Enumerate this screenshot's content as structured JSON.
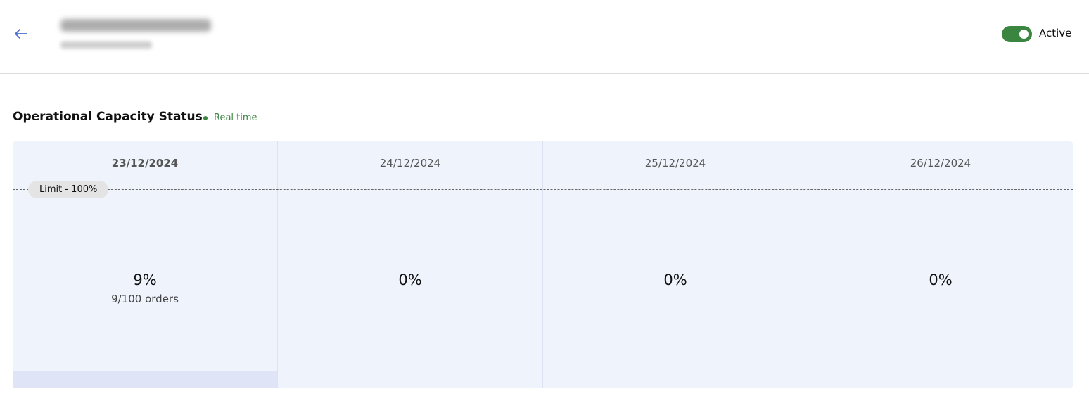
{
  "header": {
    "back_icon": "arrow-left-icon",
    "status_label": "Active",
    "status_on": true,
    "accent": "#3a8540"
  },
  "section": {
    "title": "Operational Capacity Status",
    "realtime_label": "Real time"
  },
  "capacity": {
    "limit_label": "Limit - 100%",
    "days": [
      {
        "date": "23/12/2024",
        "percent": "9%",
        "orders": "9/100 orders",
        "fill": 0.09,
        "selected": true
      },
      {
        "date": "24/12/2024",
        "percent": "0%",
        "fill": 0
      },
      {
        "date": "25/12/2024",
        "percent": "0%",
        "fill": 0
      },
      {
        "date": "26/12/2024",
        "percent": "0%",
        "fill": 0
      }
    ]
  }
}
